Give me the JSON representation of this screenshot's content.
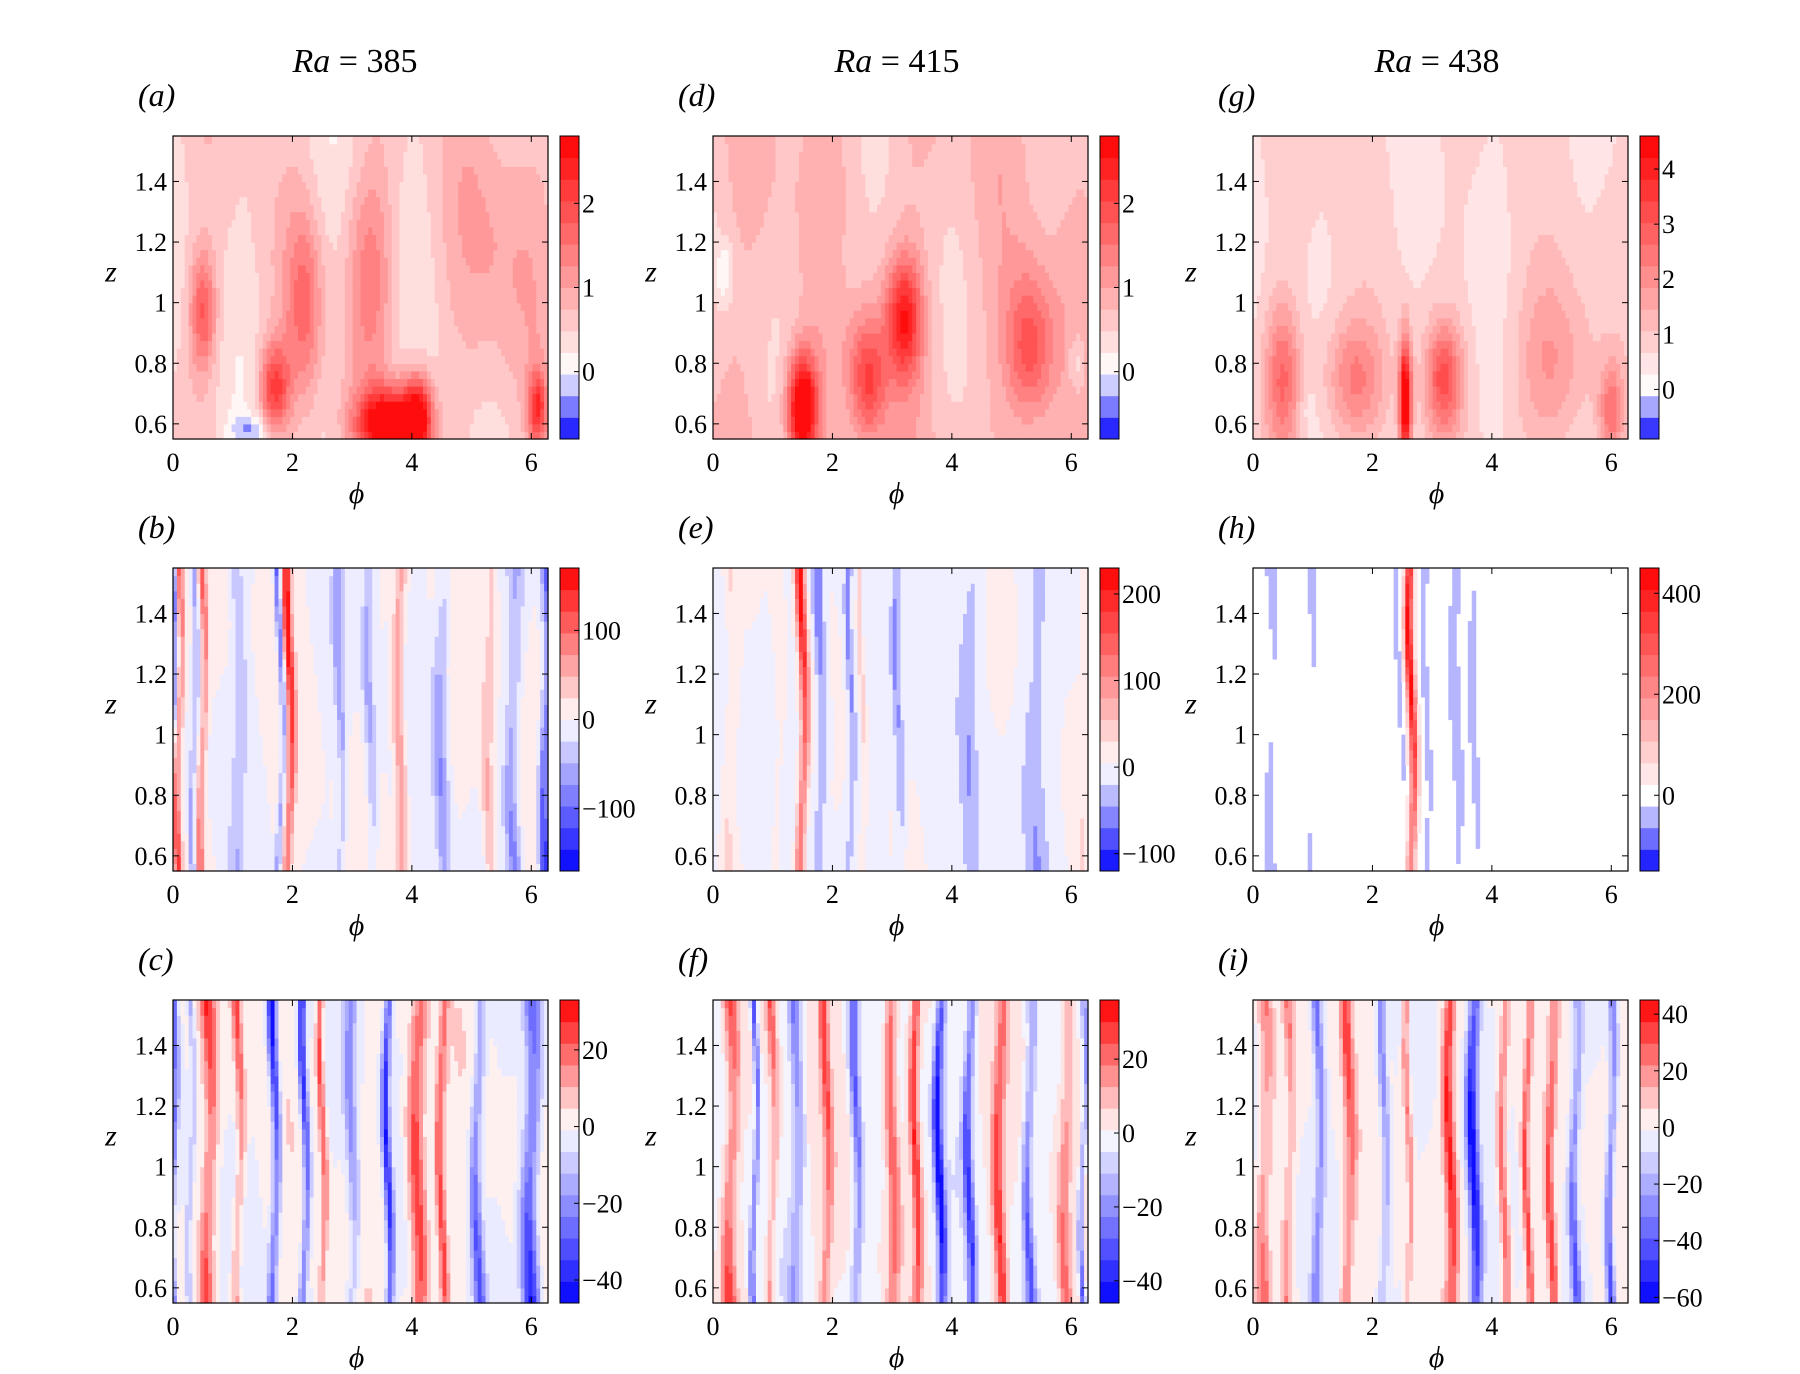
{
  "figure": {
    "columns": [
      {
        "ra_symbol": "Ra",
        "ra_eq": " = ",
        "ra_value": "385"
      },
      {
        "ra_symbol": "Ra",
        "ra_eq": " = ",
        "ra_value": "415"
      },
      {
        "ra_symbol": "Ra",
        "ra_eq": " = ",
        "ra_value": "438"
      }
    ]
  },
  "colors": {
    "negative_extreme": "#0000ff",
    "zero": "#ffffff",
    "positive_extreme": "#ff0000",
    "axes": "#000000"
  },
  "chart_data": [
    {
      "panel": "(a)",
      "type": "heatmap",
      "xlabel": "ϕ",
      "ylabel": "z",
      "xlim": [
        0,
        6.28
      ],
      "ylim": [
        0.55,
        1.55
      ],
      "x_ticks": [
        0,
        2,
        4,
        6
      ],
      "y_ticks": [
        0.6,
        0.8,
        1,
        1.2,
        1.4
      ],
      "colorbar": {
        "range": [
          -0.8,
          2.8
        ],
        "ticks": [
          0,
          1,
          2
        ],
        "levels": 14
      },
      "features": [
        {
          "x": 3.6,
          "z": 0.6,
          "v": 2.6,
          "sx": 0.5,
          "sz": 0.12
        },
        {
          "x": 4.1,
          "z": 0.62,
          "v": 2.2,
          "sx": 0.25,
          "sz": 0.15
        },
        {
          "x": 0.5,
          "z": 0.97,
          "v": 1.3,
          "sx": 0.22,
          "sz": 0.2
        },
        {
          "x": 1.7,
          "z": 0.72,
          "v": 1.6,
          "sx": 0.25,
          "sz": 0.15
        },
        {
          "x": 6.1,
          "z": 0.65,
          "v": 1.6,
          "sx": 0.15,
          "sz": 0.12
        },
        {
          "x": 2.2,
          "z": 1.0,
          "v": 1.0,
          "sx": 0.3,
          "sz": 0.3
        },
        {
          "x": 3.3,
          "z": 1.1,
          "v": 0.9,
          "sx": 0.4,
          "sz": 0.35
        },
        {
          "x": 1.3,
          "z": 0.58,
          "v": -0.6,
          "sx": 0.35,
          "sz": 0.05
        },
        {
          "x": 5.5,
          "z": 1.2,
          "v": 0.5,
          "sx": 0.8,
          "sz": 0.5
        }
      ],
      "base": 0.5,
      "wave": 0.3
    },
    {
      "panel": "(b)",
      "type": "heatmap",
      "xlabel": "ϕ",
      "ylabel": "z",
      "xlim": [
        0,
        6.28
      ],
      "ylim": [
        0.55,
        1.55
      ],
      "x_ticks": [
        0,
        2,
        4,
        6
      ],
      "y_ticks": [
        0.6,
        0.8,
        1,
        1.2,
        1.4
      ],
      "colorbar": {
        "range": [
          -170,
          170
        ],
        "ticks": [
          -100,
          0,
          100
        ],
        "levels": 14
      },
      "stripes": [
        {
          "x": 0.1,
          "v": 150,
          "w": 0.07
        },
        {
          "x": 0.0,
          "v": -130,
          "w": 0.04
        },
        {
          "x": 0.5,
          "v": 120,
          "w": 0.06
        },
        {
          "x": 0.35,
          "v": -90,
          "w": 0.05
        },
        {
          "x": 1.95,
          "v": 160,
          "w": 0.07
        },
        {
          "x": 1.8,
          "v": -120,
          "w": 0.05
        },
        {
          "x": 6.25,
          "v": -170,
          "w": 0.1
        },
        {
          "x": 2.8,
          "v": -60,
          "w": 0.08
        },
        {
          "x": 3.8,
          "v": 80,
          "w": 0.1
        },
        {
          "x": 4.5,
          "v": -70,
          "w": 0.12
        },
        {
          "x": 5.3,
          "v": 60,
          "w": 0.1
        },
        {
          "x": 5.7,
          "v": -80,
          "w": 0.12
        },
        {
          "x": 1.1,
          "v": -50,
          "w": 0.1
        },
        {
          "x": 3.3,
          "v": -60,
          "w": 0.1
        }
      ],
      "base": 0,
      "wave": 20
    },
    {
      "panel": "(c)",
      "type": "heatmap",
      "xlabel": "ϕ",
      "ylabel": "z",
      "xlim": [
        0,
        6.28
      ],
      "ylim": [
        0.55,
        1.55
      ],
      "x_ticks": [
        0,
        2,
        4,
        6
      ],
      "y_ticks": [
        0.6,
        0.8,
        1,
        1.2,
        1.4
      ],
      "colorbar": {
        "range": [
          -46,
          33
        ],
        "ticks": [
          -40,
          -20,
          0,
          20
        ],
        "levels": 14
      },
      "stripes": [
        {
          "x": 0.0,
          "v": -40,
          "w": 0.06
        },
        {
          "x": 0.6,
          "v": 30,
          "w": 0.12
        },
        {
          "x": 1.1,
          "v": 25,
          "w": 0.08
        },
        {
          "x": 1.7,
          "v": -45,
          "w": 0.08
        },
        {
          "x": 2.2,
          "v": -40,
          "w": 0.07
        },
        {
          "x": 2.5,
          "v": 25,
          "w": 0.06
        },
        {
          "x": 3.0,
          "v": -20,
          "w": 0.1
        },
        {
          "x": 3.6,
          "v": -40,
          "w": 0.07
        },
        {
          "x": 4.1,
          "v": 30,
          "w": 0.15
        },
        {
          "x": 4.5,
          "v": 25,
          "w": 0.08
        },
        {
          "x": 5.1,
          "v": -30,
          "w": 0.1
        },
        {
          "x": 6.0,
          "v": -45,
          "w": 0.15
        },
        {
          "x": 0.3,
          "v": -20,
          "w": 0.05
        }
      ],
      "base": 0,
      "wave": 5
    },
    {
      "panel": "(d)",
      "type": "heatmap",
      "xlabel": "ϕ",
      "ylabel": "z",
      "xlim": [
        0,
        6.28
      ],
      "ylim": [
        0.55,
        1.55
      ],
      "x_ticks": [
        0,
        2,
        4,
        6
      ],
      "y_ticks": [
        0.6,
        0.8,
        1,
        1.2,
        1.4
      ],
      "colorbar": {
        "range": [
          -0.8,
          2.8
        ],
        "ticks": [
          0,
          1,
          2
        ],
        "levels": 14
      },
      "features": [
        {
          "x": 1.5,
          "z": 0.65,
          "v": 2.8,
          "sx": 0.25,
          "sz": 0.18
        },
        {
          "x": 3.2,
          "z": 0.95,
          "v": 1.8,
          "sx": 0.3,
          "sz": 0.2
        },
        {
          "x": 2.6,
          "z": 0.75,
          "v": 1.4,
          "sx": 0.3,
          "sz": 0.2
        },
        {
          "x": 5.3,
          "z": 0.85,
          "v": 1.3,
          "sx": 0.4,
          "sz": 0.25
        },
        {
          "x": 0.2,
          "z": 1.1,
          "v": -0.6,
          "sx": 0.15,
          "sz": 0.1
        },
        {
          "x": 6.1,
          "z": 0.8,
          "v": -0.6,
          "sx": 0.15,
          "sz": 0.1
        },
        {
          "x": 2.3,
          "z": 1.15,
          "v": -0.2,
          "sx": 0.2,
          "sz": 0.15
        }
      ],
      "base": 0.7,
      "wave": 0.3
    },
    {
      "panel": "(e)",
      "type": "heatmap",
      "xlabel": "ϕ",
      "ylabel": "z",
      "xlim": [
        0,
        6.28
      ],
      "ylim": [
        0.55,
        1.55
      ],
      "x_ticks": [
        0,
        2,
        4,
        6
      ],
      "y_ticks": [
        0.6,
        0.8,
        1,
        1.2,
        1.4
      ],
      "colorbar": {
        "range": [
          -120,
          230
        ],
        "ticks": [
          -100,
          0,
          100,
          200
        ],
        "levels": 14
      },
      "stripes": [
        {
          "x": 1.5,
          "v": 230,
          "w": 0.08
        },
        {
          "x": 1.8,
          "v": -70,
          "w": 0.1
        },
        {
          "x": 2.3,
          "v": -60,
          "w": 0.06
        },
        {
          "x": 2.5,
          "v": 50,
          "w": 0.05
        },
        {
          "x": 3.1,
          "v": -50,
          "w": 0.08
        },
        {
          "x": 4.3,
          "v": -40,
          "w": 0.15
        },
        {
          "x": 5.4,
          "v": -40,
          "w": 0.2
        },
        {
          "x": 0.3,
          "v": 40,
          "w": 0.1
        },
        {
          "x": 1.1,
          "v": 30,
          "w": 0.1
        },
        {
          "x": 6.2,
          "v": 30,
          "w": 0.06
        }
      ],
      "base": 0,
      "wave": 10
    },
    {
      "panel": "(f)",
      "type": "heatmap",
      "xlabel": "ϕ",
      "ylabel": "z",
      "xlim": [
        0,
        6.28
      ],
      "ylim": [
        0.55,
        1.55
      ],
      "x_ticks": [
        0,
        2,
        4,
        6
      ],
      "y_ticks": [
        0.6,
        0.8,
        1,
        1.2,
        1.4
      ],
      "colorbar": {
        "range": [
          -46,
          36
        ],
        "ticks": [
          -40,
          -20,
          0,
          20
        ],
        "levels": 14
      },
      "stripes": [
        {
          "x": 0.3,
          "v": 30,
          "w": 0.12
        },
        {
          "x": 0.7,
          "v": -40,
          "w": 0.05
        },
        {
          "x": 1.0,
          "v": 25,
          "w": 0.08
        },
        {
          "x": 1.4,
          "v": -25,
          "w": 0.1
        },
        {
          "x": 1.9,
          "v": 25,
          "w": 0.08
        },
        {
          "x": 2.4,
          "v": -30,
          "w": 0.08
        },
        {
          "x": 3.0,
          "v": 25,
          "w": 0.1
        },
        {
          "x": 3.4,
          "v": 30,
          "w": 0.08
        },
        {
          "x": 3.8,
          "v": -45,
          "w": 0.08
        },
        {
          "x": 4.3,
          "v": -35,
          "w": 0.08
        },
        {
          "x": 4.8,
          "v": 30,
          "w": 0.1
        },
        {
          "x": 5.3,
          "v": -30,
          "w": 0.08
        },
        {
          "x": 5.9,
          "v": 20,
          "w": 0.1
        },
        {
          "x": 6.2,
          "v": -35,
          "w": 0.05
        }
      ],
      "base": 0,
      "wave": 5
    },
    {
      "panel": "(g)",
      "type": "heatmap",
      "xlabel": "ϕ",
      "ylabel": "z",
      "xlim": [
        0,
        6.28
      ],
      "ylim": [
        0.55,
        1.55
      ],
      "x_ticks": [
        0,
        2,
        4,
        6
      ],
      "y_ticks": [
        0.6,
        0.8,
        1,
        1.2,
        1.4
      ],
      "colorbar": {
        "range": [
          -0.9,
          4.6
        ],
        "ticks": [
          0,
          1,
          2,
          3,
          4
        ],
        "levels": 14
      },
      "features": [
        {
          "x": 2.55,
          "z": 0.68,
          "v": 4.5,
          "sx": 0.1,
          "sz": 0.2
        },
        {
          "x": 3.2,
          "z": 0.75,
          "v": 2.4,
          "sx": 0.3,
          "sz": 0.18
        },
        {
          "x": 0.5,
          "z": 0.75,
          "v": 2.0,
          "sx": 0.3,
          "sz": 0.25
        },
        {
          "x": 1.7,
          "z": 0.75,
          "v": 1.6,
          "sx": 0.5,
          "sz": 0.2
        },
        {
          "x": 6.0,
          "z": 0.65,
          "v": 1.7,
          "sx": 0.2,
          "sz": 0.15
        },
        {
          "x": 5.0,
          "z": 0.8,
          "v": 1.2,
          "sx": 0.6,
          "sz": 0.3
        },
        {
          "x": 0.9,
          "z": 0.65,
          "v": -0.3,
          "sx": 0.15,
          "sz": 0.08
        }
      ],
      "base": 0.7,
      "wave": 0.25
    },
    {
      "panel": "(h)",
      "type": "heatmap",
      "xlabel": "ϕ",
      "ylabel": "z",
      "xlim": [
        0,
        6.28
      ],
      "ylim": [
        0.55,
        1.55
      ],
      "x_ticks": [
        0,
        2,
        4,
        6
      ],
      "y_ticks": [
        0.6,
        0.8,
        1,
        1.2,
        1.4
      ],
      "colorbar": {
        "range": [
          -150,
          450
        ],
        "ticks": [
          0,
          200,
          400
        ],
        "levels": 14
      },
      "stripes": [
        {
          "x": 2.65,
          "v": 450,
          "w": 0.07
        },
        {
          "x": 2.45,
          "v": -40,
          "w": 0.05
        },
        {
          "x": 2.9,
          "v": -50,
          "w": 0.05
        },
        {
          "x": 0.3,
          "v": -40,
          "w": 0.12
        },
        {
          "x": 1.0,
          "v": -35,
          "w": 0.1
        },
        {
          "x": 3.4,
          "v": -35,
          "w": 0.12
        },
        {
          "x": 3.7,
          "v": -30,
          "w": 0.1
        }
      ],
      "base": 0,
      "wave": 0
    },
    {
      "panel": "(i)",
      "type": "heatmap",
      "xlabel": "ϕ",
      "ylabel": "z",
      "xlim": [
        0,
        6.28
      ],
      "ylim": [
        0.55,
        1.55
      ],
      "x_ticks": [
        0,
        2,
        4,
        6
      ],
      "y_ticks": [
        0.6,
        0.8,
        1,
        1.2,
        1.4
      ],
      "colorbar": {
        "range": [
          -62,
          45
        ],
        "ticks": [
          -60,
          -40,
          -20,
          0,
          20,
          40
        ],
        "levels": 14
      },
      "stripes": [
        {
          "x": 0.2,
          "v": 30,
          "w": 0.12
        },
        {
          "x": 0.6,
          "v": 25,
          "w": 0.08
        },
        {
          "x": 1.1,
          "v": -40,
          "w": 0.08
        },
        {
          "x": 1.6,
          "v": 35,
          "w": 0.1
        },
        {
          "x": 2.2,
          "v": -30,
          "w": 0.08
        },
        {
          "x": 2.6,
          "v": 25,
          "w": 0.06
        },
        {
          "x": 3.3,
          "v": 40,
          "w": 0.1
        },
        {
          "x": 3.7,
          "v": -60,
          "w": 0.1
        },
        {
          "x": 4.2,
          "v": 30,
          "w": 0.08
        },
        {
          "x": 4.6,
          "v": 35,
          "w": 0.06
        },
        {
          "x": 5.0,
          "v": 35,
          "w": 0.08
        },
        {
          "x": 5.4,
          "v": -40,
          "w": 0.08
        },
        {
          "x": 6.0,
          "v": -50,
          "w": 0.07
        }
      ],
      "base": 0,
      "wave": 5
    }
  ]
}
